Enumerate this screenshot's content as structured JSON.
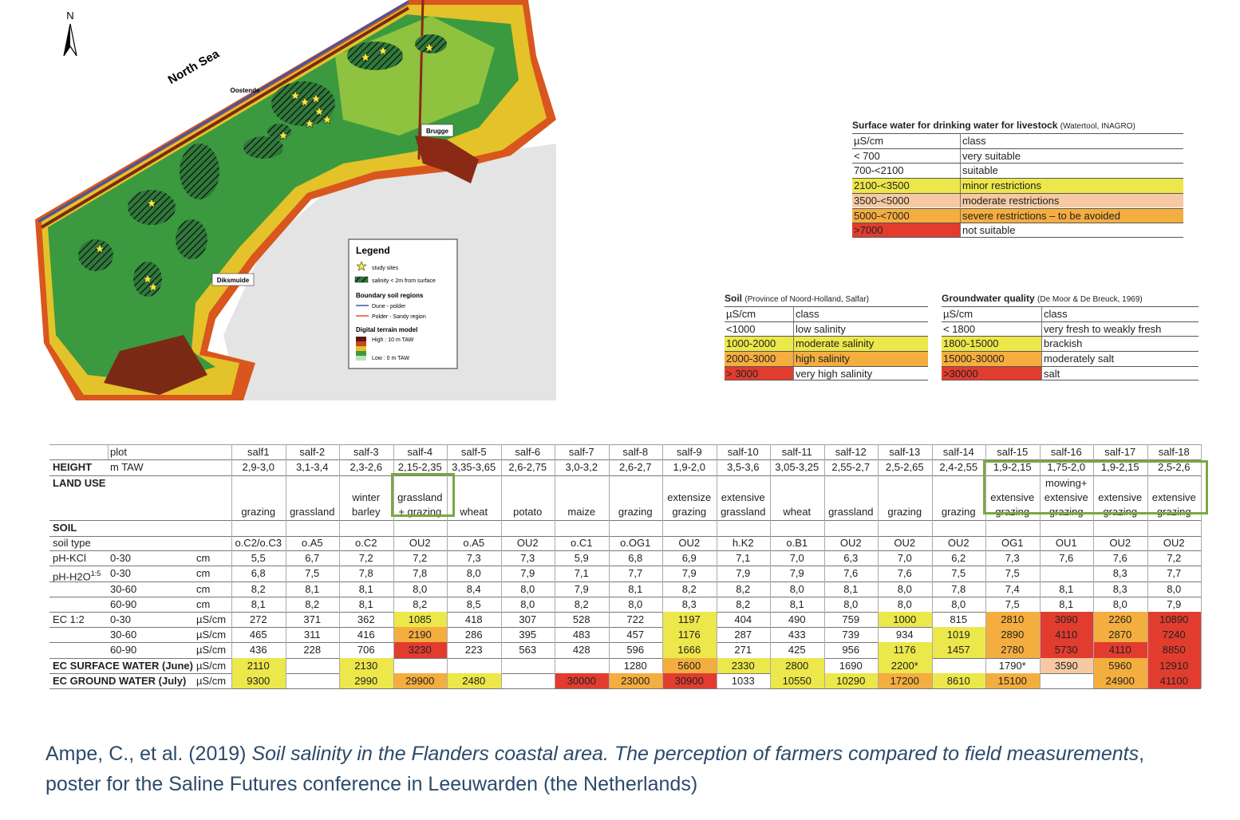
{
  "map": {
    "north": "N",
    "sea": "North Sea",
    "towns": [
      "Oostende",
      "Brugge",
      "Diksmuide"
    ],
    "legend": {
      "title": "Legend",
      "study_sites": "study sites",
      "salinity": "salinity < 2m from surface",
      "boundary_title": "Boundary soil regions",
      "dune": "Dune - polder",
      "polder": "Polder - Sandy region",
      "dtm_title": "Digital terrain model",
      "high": "High : 10 m TAW",
      "low": "Low : 0 m TAW"
    }
  },
  "surface_water_table": {
    "title": "Surface water for drinking water for livestock",
    "source": "(Watertool, INAGRO)",
    "header": [
      "µS/cm",
      "class"
    ],
    "rows": [
      [
        "< 700",
        "very suitable"
      ],
      [
        "700-<2100",
        "suitable"
      ],
      [
        "2100-<3500",
        "minor restrictions"
      ],
      [
        "3500-<5000",
        "moderate restrictions"
      ],
      [
        "5000-<7000",
        "severe restrictions – to be avoided"
      ],
      [
        ">7000",
        "not suitable"
      ]
    ],
    "fills": [
      [
        null,
        null
      ],
      [
        null,
        null
      ],
      [
        "#ece74a",
        "#ece74a"
      ],
      [
        "#f7c9a2",
        "#f7c9a2"
      ],
      [
        "#f4ae3f",
        "#f4ae3f"
      ],
      [
        "#e23c2f",
        null
      ]
    ]
  },
  "soil_table": {
    "title": "Soil",
    "source": "(Province of Noord-Holland, Salfar)",
    "header": [
      "µS/cm",
      "class"
    ],
    "rows": [
      [
        "<1000",
        "low salinity"
      ],
      [
        "1000-2000",
        "moderate salinity"
      ],
      [
        "2000-3000",
        "high salinity"
      ],
      [
        "> 3000",
        "very high salinity"
      ]
    ],
    "fills": [
      [
        null,
        null
      ],
      [
        "#ece74a",
        "#ece74a"
      ],
      [
        "#f4ae3f",
        "#f4ae3f"
      ],
      [
        "#e23c2f",
        null
      ]
    ]
  },
  "groundwater_table": {
    "title": "Groundwater quality",
    "source": "(De Moor & De Breuck, 1969)",
    "header": [
      "µS/cm",
      "class"
    ],
    "rows": [
      [
        "< 1800",
        "very fresh to weakly fresh"
      ],
      [
        "1800-15000",
        "brackish"
      ],
      [
        "15000-30000",
        "moderately salt"
      ],
      [
        ">30000",
        "salt"
      ]
    ],
    "fills": [
      [
        null,
        null
      ],
      [
        "#ece74a",
        null
      ],
      [
        "#f4ae3f",
        null
      ],
      [
        "#e23c2f",
        null
      ]
    ]
  },
  "data_table": {
    "rows": [
      {
        "sub": "plot",
        "cells": [
          "salf1",
          "salf-2",
          "salf-3",
          "salf-4",
          "salf-5",
          "salf-6",
          "salf-7",
          "salf-8",
          "salf-9",
          "salf-10",
          "salf-11",
          "salf-12",
          "salf-13",
          "salf-14",
          "salf-15",
          "salf-16",
          "salf-17",
          "salf-18"
        ]
      },
      {
        "label": "HEIGHT",
        "bold": true,
        "sub": "m TAW",
        "cells": [
          "2,9-3,0",
          "3,1-3,4",
          "2,3-2,6",
          "2,15-2,35",
          "3,35-3,65",
          "2,6-2,75",
          "3,0-3,2",
          "2,6-2,7",
          "1,9-2,0",
          "3,5-3,6",
          "3,05-3,25",
          "2,55-2,7",
          "2,5-2,65",
          "2,4-2,55",
          "1,9-2,15",
          "1,75-2,0",
          "1,9-2,15",
          "2,5-2,6"
        ]
      },
      {
        "label": "LAND USE",
        "bold": true,
        "cells": [
          "grazing",
          "grassland",
          "winter\nbarley",
          "grassland\n+ grazing",
          "wheat",
          "potato",
          "maize",
          "grazing",
          "extensize\ngrazing",
          "extensive\ngrassland",
          "wheat",
          "grassland",
          "grazing",
          "grazing",
          "extensive\ngrazing",
          "mowing+\nextensive\ngrazing",
          "extensive\ngrazing",
          "extensive\ngrazing"
        ]
      },
      {
        "label": "SOIL",
        "bold": true
      },
      {
        "label": "soil type",
        "cells": [
          "o.C2/o.C3",
          "o.A5",
          "o.C2",
          "OU2",
          "o.A5",
          "OU2",
          "o.C1",
          "o.OG1",
          "OU2",
          "h.K2",
          "o.B1",
          "OU2",
          "OU2",
          "OU2",
          "OG1",
          "OU1",
          "OU2",
          "OU2"
        ]
      },
      {
        "label": "pH-KCl",
        "sub": "0-30",
        "unit": "cm",
        "cells": [
          "5,5",
          "6,7",
          "7,2",
          "7,2",
          "7,3",
          "7,3",
          "5,9",
          "6,8",
          "6,9",
          "7,1",
          "7,0",
          "6,3",
          "7,0",
          "6,2",
          "7,3",
          "7,6",
          "7,6",
          "7,2"
        ]
      },
      {
        "label": "pH-H2O",
        "label_sup": "1:5",
        "sub": "0-30",
        "unit": "cm",
        "cells": [
          "6,8",
          "7,5",
          "7,8",
          "7,8",
          "8,0",
          "7,9",
          "7,1",
          "7,7",
          "7,9",
          "7,9",
          "7,9",
          "7,6",
          "7,6",
          "7,5",
          "7,5",
          null,
          "8,3",
          "7,7"
        ]
      },
      {
        "sub": "30-60",
        "unit": "cm",
        "cells": [
          "8,2",
          "8,1",
          "8,1",
          "8,0",
          "8,4",
          "8,0",
          "7,9",
          "8,1",
          "8,2",
          "8,2",
          "8,0",
          "8,1",
          "8,0",
          "7,8",
          "7,4",
          "8,1",
          "8,3",
          "8,0"
        ]
      },
      {
        "sub": "60-90",
        "unit": "cm",
        "cells": [
          "8,1",
          "8,2",
          "8,1",
          "8,2",
          "8,5",
          "8,0",
          "8,2",
          "8,0",
          "8,3",
          "8,2",
          "8,1",
          "8,0",
          "8,0",
          "8,0",
          "7,5",
          "8,1",
          "8,0",
          "7,9"
        ]
      },
      {
        "label": "EC 1:2",
        "sub": "0-30",
        "unit": "µS/cm",
        "cells": [
          "272",
          "371",
          "362",
          "1085",
          "418",
          "307",
          "528",
          "722",
          "1197",
          "404",
          "490",
          "759",
          "1000",
          "815",
          "2810",
          "3090",
          "2260",
          "10890"
        ],
        "fills": [
          null,
          null,
          null,
          "#ece74a",
          null,
          null,
          null,
          null,
          "#ece74a",
          null,
          null,
          null,
          "#ece74a",
          null,
          "#f4ae3f",
          "#e23c2f",
          "#f4ae3f",
          "#e23c2f"
        ]
      },
      {
        "sub": "30-60",
        "unit": "µS/cm",
        "cells": [
          "465",
          "311",
          "416",
          "2190",
          "286",
          "395",
          "483",
          "457",
          "1176",
          "287",
          "433",
          "739",
          "934",
          "1019",
          "2890",
          "4110",
          "2870",
          "7240"
        ],
        "fills": [
          null,
          null,
          null,
          "#f4ae3f",
          null,
          null,
          null,
          null,
          "#ece74a",
          null,
          null,
          null,
          null,
          "#ece74a",
          "#f4ae3f",
          "#e23c2f",
          "#f4ae3f",
          "#e23c2f"
        ]
      },
      {
        "sub": "60-90",
        "unit": "µS/cm",
        "cells": [
          "436",
          "228",
          "706",
          "3230",
          "223",
          "563",
          "428",
          "596",
          "1666",
          "271",
          "425",
          "956",
          "1176",
          "1457",
          "2780",
          "5730",
          "4110",
          "8850"
        ],
        "fills": [
          null,
          null,
          null,
          "#e23c2f",
          null,
          null,
          null,
          null,
          "#ece74a",
          null,
          null,
          null,
          "#ece74a",
          "#ece74a",
          "#f4ae3f",
          "#e23c2f",
          "#e23c2f",
          "#e23c2f"
        ]
      },
      {
        "label": "EC SURFACE WATER (June)",
        "bold": true,
        "unit": "µS/cm",
        "cells": [
          "2110",
          null,
          "2130",
          null,
          null,
          null,
          null,
          "1280",
          "5600",
          "2330",
          "2800",
          "1690",
          "2200*",
          null,
          "1790*",
          "3590",
          "5960",
          "12910"
        ],
        "fills": [
          "#ece74a",
          null,
          "#ece74a",
          null,
          null,
          null,
          null,
          null,
          "#f4ae3f",
          "#ece74a",
          "#ece74a",
          null,
          "#ece74a",
          null,
          null,
          "#f7c9a2",
          "#f4ae3f",
          "#e23c2f"
        ]
      },
      {
        "label": "EC GROUND WATER (July)",
        "bold": true,
        "unit": "µS/cm",
        "cells": [
          "9300",
          null,
          "2990",
          "29900",
          "2480",
          null,
          "30000",
          "23000",
          "30900",
          "1033",
          "10550",
          "10290",
          "17200",
          "8610",
          "15100",
          null,
          "24900",
          "41100"
        ],
        "fills": [
          "#ece74a",
          null,
          "#ece74a",
          "#f4ae3f",
          "#ece74a",
          null,
          "#e23c2f",
          "#f4ae3f",
          "#e23c2f",
          null,
          "#ece74a",
          "#ece74a",
          "#f4ae3f",
          "#ece74a",
          "#f4ae3f",
          null,
          "#f4ae3f",
          "#e23c2f"
        ]
      }
    ]
  },
  "citation": {
    "authors": "Ampe, C., et al. (2019) ",
    "title": "Soil salinity in the Flanders coastal area. The perception of farmers compared to field measurements",
    "rest": ", poster for the Saline Futures conference in Leeuwarden (the Netherlands)"
  }
}
